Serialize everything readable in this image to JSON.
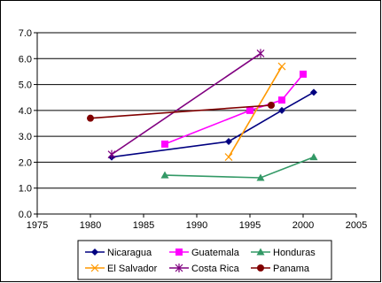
{
  "chart_data": {
    "type": "line",
    "title": "",
    "xlabel": "",
    "ylabel": "",
    "xlim": [
      1975,
      2005
    ],
    "ylim": [
      0,
      7
    ],
    "x_ticks": [
      1975,
      1980,
      1985,
      1990,
      1995,
      2000,
      2005
    ],
    "y_ticks": [
      "0.0",
      "1.0",
      "2.0",
      "3.0",
      "4.0",
      "5.0",
      "6.0",
      "7.0"
    ],
    "grid": "horizontal",
    "legend_position": "bottom",
    "series": [
      {
        "name": "Nicaragua",
        "color": "#000080",
        "marker": "diamond",
        "points": [
          [
            1982,
            2.2
          ],
          [
            1993,
            2.8
          ],
          [
            1998,
            4.0
          ],
          [
            2001,
            4.7
          ]
        ]
      },
      {
        "name": "Guatemala",
        "color": "#FF00FF",
        "marker": "square",
        "points": [
          [
            1987,
            2.7
          ],
          [
            1995,
            4.0
          ],
          [
            1998,
            4.4
          ],
          [
            2000,
            5.4
          ]
        ]
      },
      {
        "name": "Honduras",
        "color": "#339966",
        "marker": "triangle",
        "points": [
          [
            1987,
            1.5
          ],
          [
            1996,
            1.4
          ],
          [
            2001,
            2.2
          ]
        ]
      },
      {
        "name": "El Salvador",
        "color": "#FF9900",
        "marker": "x",
        "points": [
          [
            1993,
            2.2
          ],
          [
            1998,
            5.7
          ]
        ]
      },
      {
        "name": "Costa Rica",
        "color": "#800080",
        "marker": "star",
        "points": [
          [
            1982,
            2.3
          ],
          [
            1996,
            6.2
          ]
        ]
      },
      {
        "name": "Panama",
        "color": "#800000",
        "marker": "circle",
        "points": [
          [
            1980,
            3.7
          ],
          [
            1997,
            4.2
          ]
        ]
      }
    ]
  }
}
